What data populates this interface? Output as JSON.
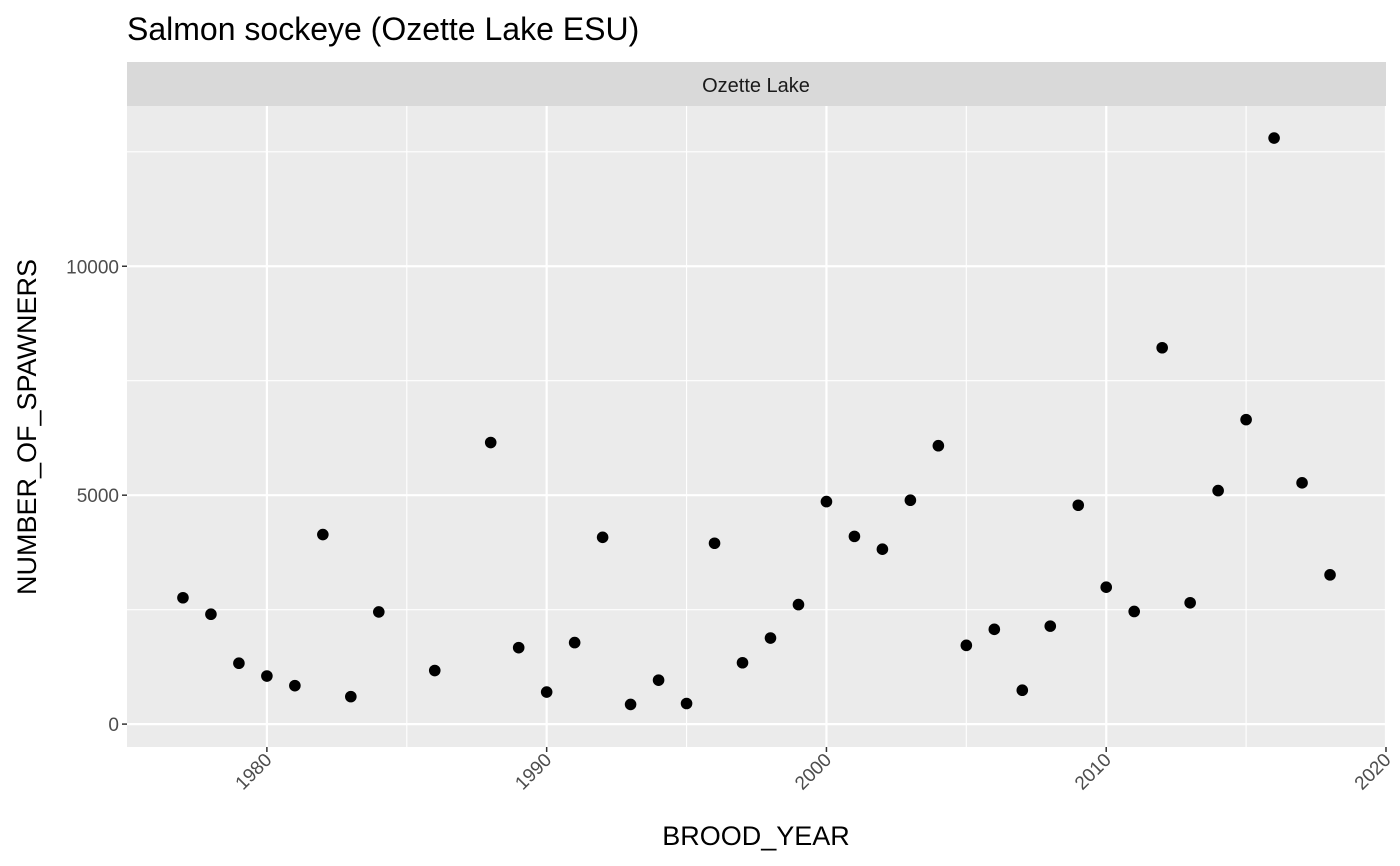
{
  "chart_data": {
    "type": "scatter",
    "title": "Salmon sockeye (Ozette Lake ESU)",
    "facet_label": "Ozette Lake",
    "xlabel": "BROOD_YEAR",
    "ylabel": "NUMBER_OF_SPAWNERS",
    "xlim": [
      1975,
      2020
    ],
    "ylim": [
      -500,
      13500
    ],
    "x_ticks": [
      1980,
      1990,
      2000,
      2010,
      2020
    ],
    "x_tick_labels": [
      "1980",
      "1990",
      "2000",
      "2010",
      "2020"
    ],
    "y_ticks": [
      0,
      5000,
      10000
    ],
    "y_tick_labels": [
      "0",
      "5000",
      "10000"
    ],
    "grid": true,
    "panel_color": "#ebebeb",
    "strip_color": "#d9d9d9",
    "point_color": "#000000",
    "points": [
      {
        "x": 1977,
        "y": 2760
      },
      {
        "x": 1978,
        "y": 2400
      },
      {
        "x": 1979,
        "y": 1330
      },
      {
        "x": 1980,
        "y": 1050
      },
      {
        "x": 1981,
        "y": 840
      },
      {
        "x": 1982,
        "y": 4140
      },
      {
        "x": 1983,
        "y": 600
      },
      {
        "x": 1984,
        "y": 2450
      },
      {
        "x": 1986,
        "y": 1170
      },
      {
        "x": 1988,
        "y": 6150
      },
      {
        "x": 1989,
        "y": 1670
      },
      {
        "x": 1990,
        "y": 700
      },
      {
        "x": 1991,
        "y": 1780
      },
      {
        "x": 1992,
        "y": 4080
      },
      {
        "x": 1993,
        "y": 430
      },
      {
        "x": 1994,
        "y": 960
      },
      {
        "x": 1995,
        "y": 450
      },
      {
        "x": 1996,
        "y": 3950
      },
      {
        "x": 1997,
        "y": 1340
      },
      {
        "x": 1998,
        "y": 1880
      },
      {
        "x": 1999,
        "y": 2610
      },
      {
        "x": 2000,
        "y": 4860
      },
      {
        "x": 2001,
        "y": 4100
      },
      {
        "x": 2002,
        "y": 3820
      },
      {
        "x": 2003,
        "y": 4890
      },
      {
        "x": 2004,
        "y": 6080
      },
      {
        "x": 2005,
        "y": 1720
      },
      {
        "x": 2006,
        "y": 2070
      },
      {
        "x": 2007,
        "y": 740
      },
      {
        "x": 2008,
        "y": 2140
      },
      {
        "x": 2009,
        "y": 4780
      },
      {
        "x": 2010,
        "y": 2990
      },
      {
        "x": 2011,
        "y": 2460
      },
      {
        "x": 2012,
        "y": 8220
      },
      {
        "x": 2013,
        "y": 2650
      },
      {
        "x": 2014,
        "y": 5100
      },
      {
        "x": 2015,
        "y": 6650
      },
      {
        "x": 2016,
        "y": 12800
      },
      {
        "x": 2017,
        "y": 5270
      },
      {
        "x": 2018,
        "y": 3260
      }
    ]
  }
}
